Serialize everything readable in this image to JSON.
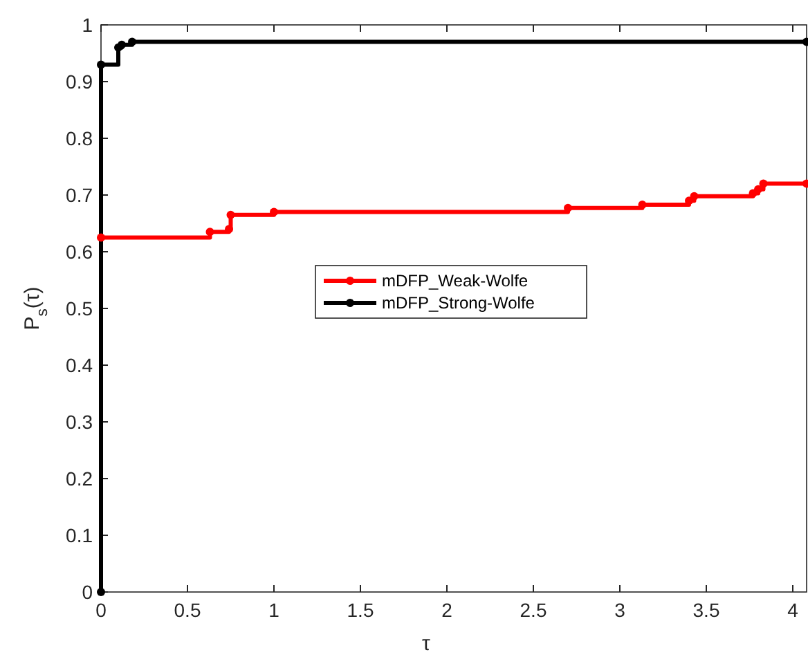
{
  "chart_data": {
    "type": "step",
    "xlabel": "τ",
    "ylabel": "P$_{s}$(τ)",
    "xlim": [
      0,
      4.08
    ],
    "ylim": [
      0,
      1
    ],
    "xticks": [
      0,
      0.5,
      1,
      1.5,
      2,
      2.5,
      3,
      3.5,
      4
    ],
    "yticks": [
      0,
      0.1,
      0.2,
      0.3,
      0.4,
      0.5,
      0.6,
      0.7,
      0.8,
      0.9,
      1
    ],
    "grid": false,
    "legend": "center",
    "marker": "circle",
    "line_style": "solid",
    "series": [
      {
        "name": "mDFP_Weak-Wolfe",
        "color": "#ff0000",
        "x": [
          0,
          0.63,
          0.74,
          0.75,
          1.0,
          2.7,
          3.13,
          3.4,
          3.43,
          3.77,
          3.8,
          3.83,
          4.08
        ],
        "values": [
          0.625,
          0.635,
          0.64,
          0.665,
          0.67,
          0.677,
          0.683,
          0.69,
          0.698,
          0.703,
          0.71,
          0.72,
          0.72
        ]
      },
      {
        "name": "mDFP_Strong-Wolfe",
        "color": "#000000",
        "x": [
          0,
          0,
          0.1,
          0.12,
          0.18,
          4.08
        ],
        "values": [
          0,
          0.93,
          0.96,
          0.965,
          0.97,
          0.97
        ]
      }
    ]
  }
}
